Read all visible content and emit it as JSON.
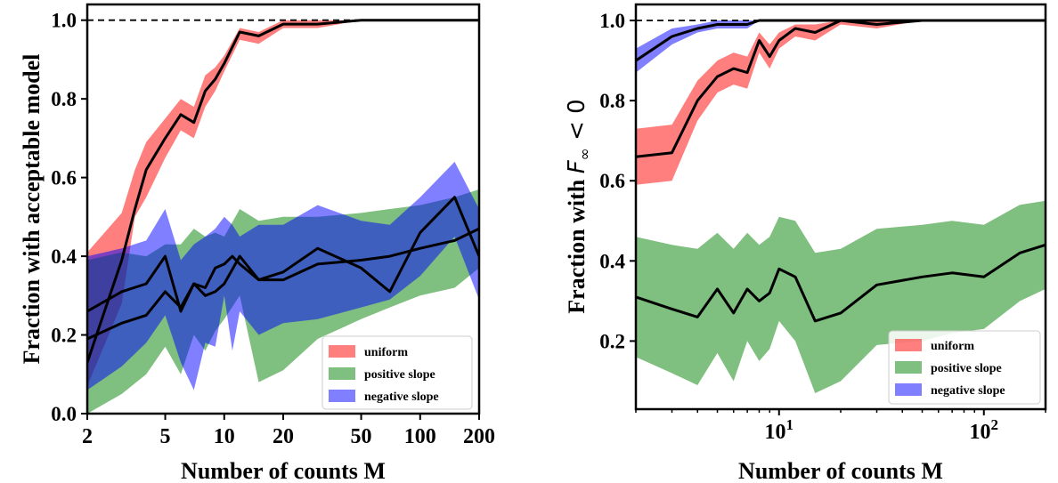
{
  "colors": {
    "uniform": "#ff0000",
    "positive": "#008000",
    "negative": "#0000ff",
    "median": "#000000",
    "reference": "#000000"
  },
  "chart_data": [
    {
      "type": "area",
      "xlabel": "Number of counts M",
      "ylabel": "Fraction with acceptable model",
      "xscale": "log",
      "xlim": [
        2,
        200
      ],
      "ylim": [
        0.0,
        1.04
      ],
      "xticks": [
        2,
        5,
        10,
        20,
        50,
        100,
        200
      ],
      "xtick_labels": [
        "2",
        "5",
        "10",
        "20",
        "50",
        "100",
        "200"
      ],
      "yticks": [
        0.0,
        0.2,
        0.4,
        0.6,
        0.8,
        1.0
      ],
      "ytick_labels": [
        "0.0",
        "0.2",
        "0.4",
        "0.6",
        "0.8",
        "1.0"
      ],
      "reference_line": {
        "y": 1.0,
        "style": "dashed"
      },
      "legend_position": "lower right",
      "series": [
        {
          "name": "uniform",
          "color_key": "uniform",
          "x": [
            2,
            3,
            3.5,
            4,
            5,
            6,
            7,
            8,
            9,
            10,
            12,
            15,
            20,
            30,
            50,
            200
          ],
          "lower": [
            0.07,
            0.28,
            0.5,
            0.55,
            0.65,
            0.72,
            0.7,
            0.78,
            0.82,
            0.87,
            0.95,
            0.94,
            0.98,
            0.98,
            1.0,
            1.0
          ],
          "median": [
            0.13,
            0.39,
            0.52,
            0.62,
            0.7,
            0.76,
            0.74,
            0.82,
            0.85,
            0.89,
            0.97,
            0.96,
            0.99,
            0.99,
            1.0,
            1.0
          ],
          "upper": [
            0.41,
            0.51,
            0.62,
            0.69,
            0.75,
            0.8,
            0.78,
            0.86,
            0.88,
            0.91,
            0.98,
            0.97,
            1.0,
            1.0,
            1.0,
            1.0
          ]
        },
        {
          "name": "positive slope",
          "color_key": "positive",
          "x": [
            2,
            3,
            4,
            5,
            6,
            7,
            8,
            9,
            10,
            12,
            15,
            20,
            30,
            50,
            70,
            100,
            150,
            200
          ],
          "lower": [
            0.0,
            0.05,
            0.1,
            0.17,
            0.1,
            0.2,
            0.16,
            0.21,
            0.24,
            0.3,
            0.08,
            0.11,
            0.19,
            0.24,
            0.27,
            0.3,
            0.32,
            0.37
          ],
          "median": [
            0.19,
            0.23,
            0.25,
            0.31,
            0.27,
            0.33,
            0.3,
            0.31,
            0.33,
            0.4,
            0.34,
            0.34,
            0.38,
            0.39,
            0.4,
            0.42,
            0.44,
            0.47
          ],
          "upper": [
            0.39,
            0.41,
            0.4,
            0.43,
            0.43,
            0.47,
            0.45,
            0.46,
            0.45,
            0.52,
            0.49,
            0.5,
            0.5,
            0.51,
            0.52,
            0.53,
            0.55,
            0.57
          ]
        },
        {
          "name": "negative slope",
          "color_key": "negative",
          "x": [
            2,
            3,
            4,
            5,
            6,
            7,
            8,
            9,
            10,
            11,
            12,
            15,
            20,
            30,
            50,
            70,
            100,
            150,
            200
          ],
          "lower": [
            0.06,
            0.12,
            0.18,
            0.25,
            0.13,
            0.06,
            0.18,
            0.17,
            0.3,
            0.16,
            0.26,
            0.2,
            0.23,
            0.24,
            0.27,
            0.29,
            0.35,
            0.45,
            0.29
          ],
          "median": [
            0.26,
            0.31,
            0.33,
            0.4,
            0.26,
            0.33,
            0.32,
            0.37,
            0.38,
            0.4,
            0.38,
            0.34,
            0.36,
            0.42,
            0.37,
            0.31,
            0.46,
            0.55,
            0.4
          ],
          "upper": [
            0.4,
            0.42,
            0.44,
            0.52,
            0.39,
            0.43,
            0.45,
            0.47,
            0.5,
            0.48,
            0.45,
            0.48,
            0.48,
            0.53,
            0.49,
            0.48,
            0.55,
            0.64,
            0.52
          ]
        }
      ]
    },
    {
      "type": "area",
      "xlabel": "Number of counts M",
      "ylabel_text": "Fraction with ",
      "ylabel_symbol": "F",
      "ylabel_subscript": "∞",
      "ylabel_suffix": " < 0",
      "xscale": "log",
      "xlim": [
        2,
        200
      ],
      "ylim": [
        0.03,
        1.04
      ],
      "xticks": [
        10,
        100
      ],
      "xtick_base": "10",
      "xtick_exponents": [
        "1",
        "2"
      ],
      "yticks": [
        0.2,
        0.4,
        0.6,
        0.8,
        1.0
      ],
      "ytick_labels": [
        "0.2",
        "0.4",
        "0.6",
        "0.8",
        "1.0"
      ],
      "reference_line": {
        "y": 1.0,
        "style": "dashed"
      },
      "legend_position": "lower right",
      "series": [
        {
          "name": "uniform",
          "color_key": "uniform",
          "x": [
            2,
            3,
            4,
            5,
            6,
            7,
            8,
            9,
            10,
            12,
            15,
            20,
            30,
            50,
            200
          ],
          "lower": [
            0.59,
            0.6,
            0.75,
            0.82,
            0.84,
            0.83,
            0.92,
            0.88,
            0.93,
            0.96,
            0.95,
            0.99,
            0.98,
            1.0,
            1.0
          ],
          "median": [
            0.66,
            0.67,
            0.8,
            0.86,
            0.88,
            0.87,
            0.95,
            0.91,
            0.95,
            0.98,
            0.97,
            1.0,
            0.99,
            1.0,
            1.0
          ],
          "upper": [
            0.73,
            0.74,
            0.85,
            0.9,
            0.92,
            0.91,
            0.97,
            0.94,
            0.97,
            0.99,
            0.99,
            1.0,
            1.0,
            1.0,
            1.0
          ]
        },
        {
          "name": "positive slope",
          "color_key": "positive",
          "x": [
            2,
            3,
            4,
            5,
            6,
            7,
            8,
            9,
            10,
            12,
            15,
            20,
            30,
            50,
            70,
            100,
            150,
            200
          ],
          "lower": [
            0.16,
            0.12,
            0.09,
            0.17,
            0.1,
            0.2,
            0.15,
            0.18,
            0.25,
            0.2,
            0.07,
            0.1,
            0.19,
            0.2,
            0.22,
            0.23,
            0.3,
            0.33
          ],
          "median": [
            0.31,
            0.28,
            0.26,
            0.33,
            0.27,
            0.33,
            0.3,
            0.32,
            0.38,
            0.36,
            0.25,
            0.27,
            0.34,
            0.36,
            0.37,
            0.36,
            0.42,
            0.44
          ],
          "upper": [
            0.46,
            0.44,
            0.43,
            0.47,
            0.43,
            0.47,
            0.44,
            0.46,
            0.51,
            0.5,
            0.42,
            0.43,
            0.48,
            0.49,
            0.5,
            0.49,
            0.54,
            0.55
          ]
        },
        {
          "name": "negative slope",
          "color_key": "negative",
          "x": [
            2,
            3,
            4,
            5,
            6,
            7,
            8,
            200
          ],
          "lower": [
            0.87,
            0.94,
            0.97,
            0.98,
            0.98,
            0.98,
            1.0,
            1.0
          ],
          "median": [
            0.9,
            0.96,
            0.98,
            0.99,
            0.99,
            0.99,
            1.0,
            1.0
          ],
          "upper": [
            0.93,
            0.98,
            0.99,
            1.0,
            1.0,
            1.0,
            1.0,
            1.0
          ]
        }
      ]
    }
  ]
}
